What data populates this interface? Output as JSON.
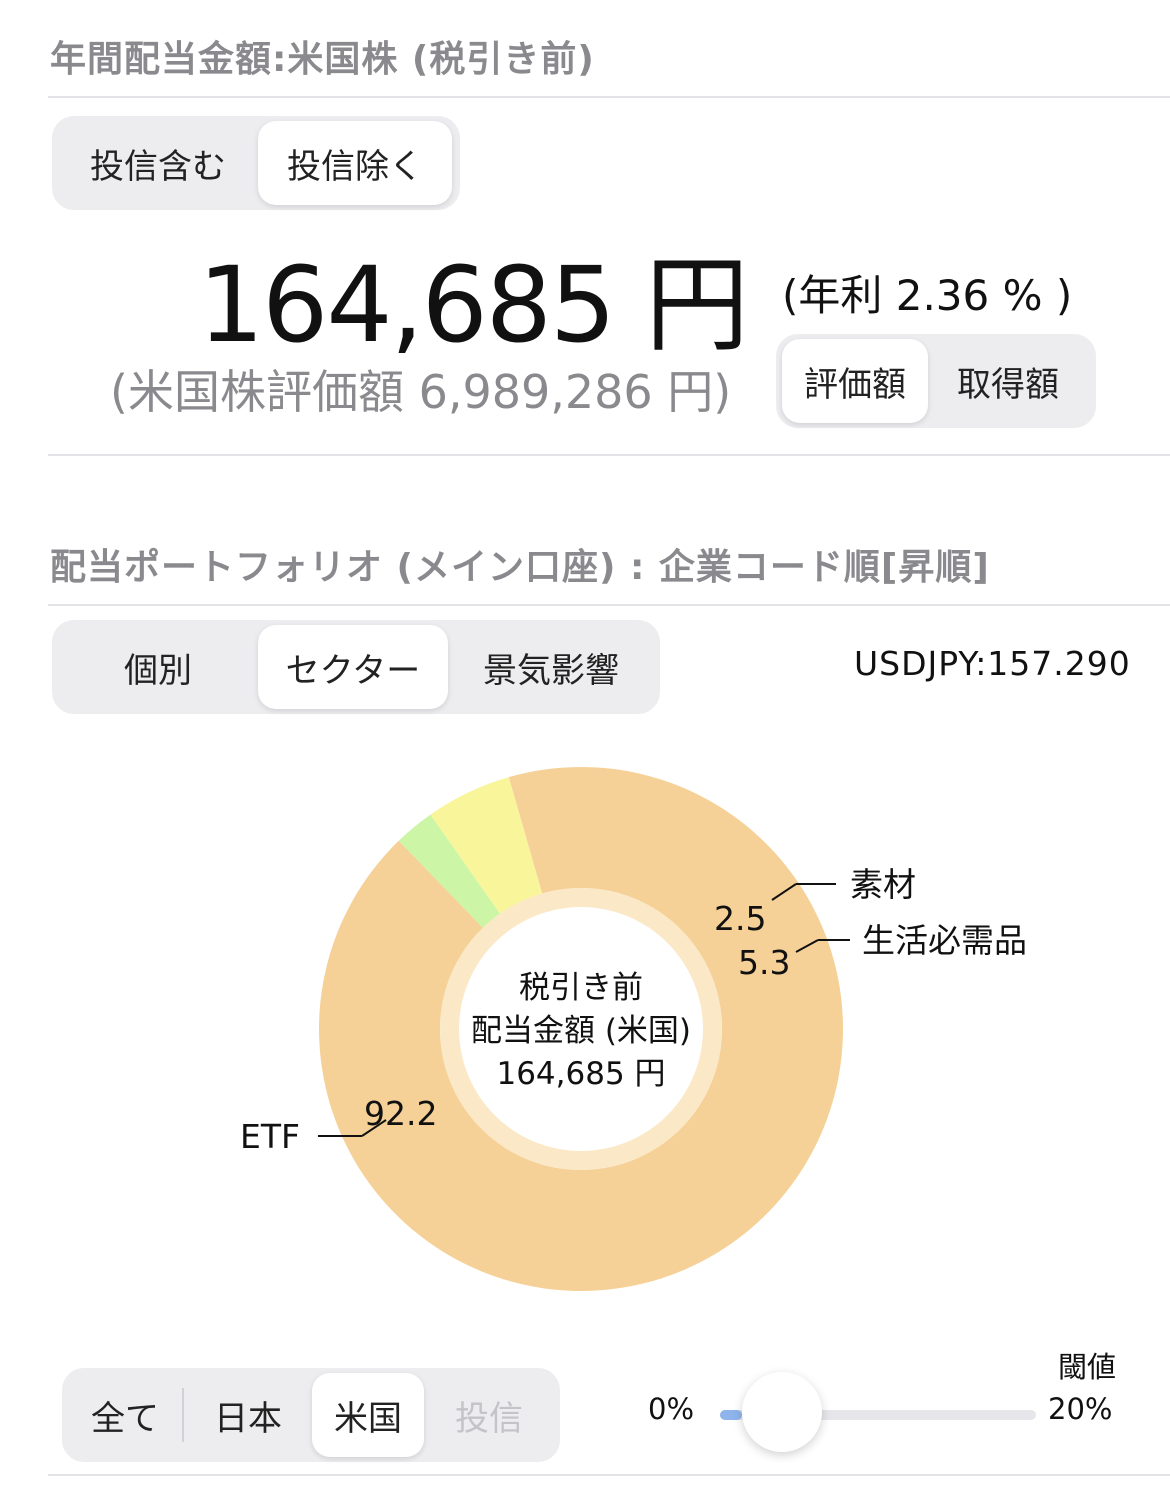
{
  "summary": {
    "title": "年間配当金額:米国株 (税引き前)",
    "fund_toggle": [
      {
        "label": "投信含む",
        "active": false
      },
      {
        "label": "投信除く",
        "active": true
      }
    ],
    "amount": "164,685 円",
    "yield": "(年利 2.36 % )",
    "valuation": "(米国株評価額 6,989,286 円)",
    "basis_toggle": [
      {
        "label": "評価額",
        "active": true
      },
      {
        "label": "取得額",
        "active": false
      }
    ]
  },
  "portfolio": {
    "title": "配当ポートフォリオ (メイン口座) : 企業コード順[昇順]",
    "view_tabs": [
      {
        "label": "個別",
        "active": false
      },
      {
        "label": "セクター",
        "active": true
      },
      {
        "label": "景気影響",
        "active": false
      }
    ],
    "fx_rate": "USDJPY:157.290",
    "region_tabs": [
      {
        "label": "全て",
        "active": false
      },
      {
        "label": "日本",
        "active": false
      },
      {
        "label": "米国",
        "active": true
      },
      {
        "label": "投信",
        "active": false,
        "disabled": true
      }
    ],
    "threshold": {
      "label": "閾値",
      "min_label": "0%",
      "max_label": "20%",
      "value_percent": 0
    }
  },
  "chart_data": {
    "type": "pie",
    "donut": true,
    "center_text": [
      "税引き前",
      "配当金額 (米国)",
      "164,685 円"
    ],
    "slices": [
      {
        "label": "ETF",
        "value": 92.2,
        "color": "#f5d197"
      },
      {
        "label": "素材",
        "value": 2.5,
        "color": "#ccf5a6"
      },
      {
        "label": "生活必需品",
        "value": 5.3,
        "color": "#f8f59a"
      }
    ]
  }
}
